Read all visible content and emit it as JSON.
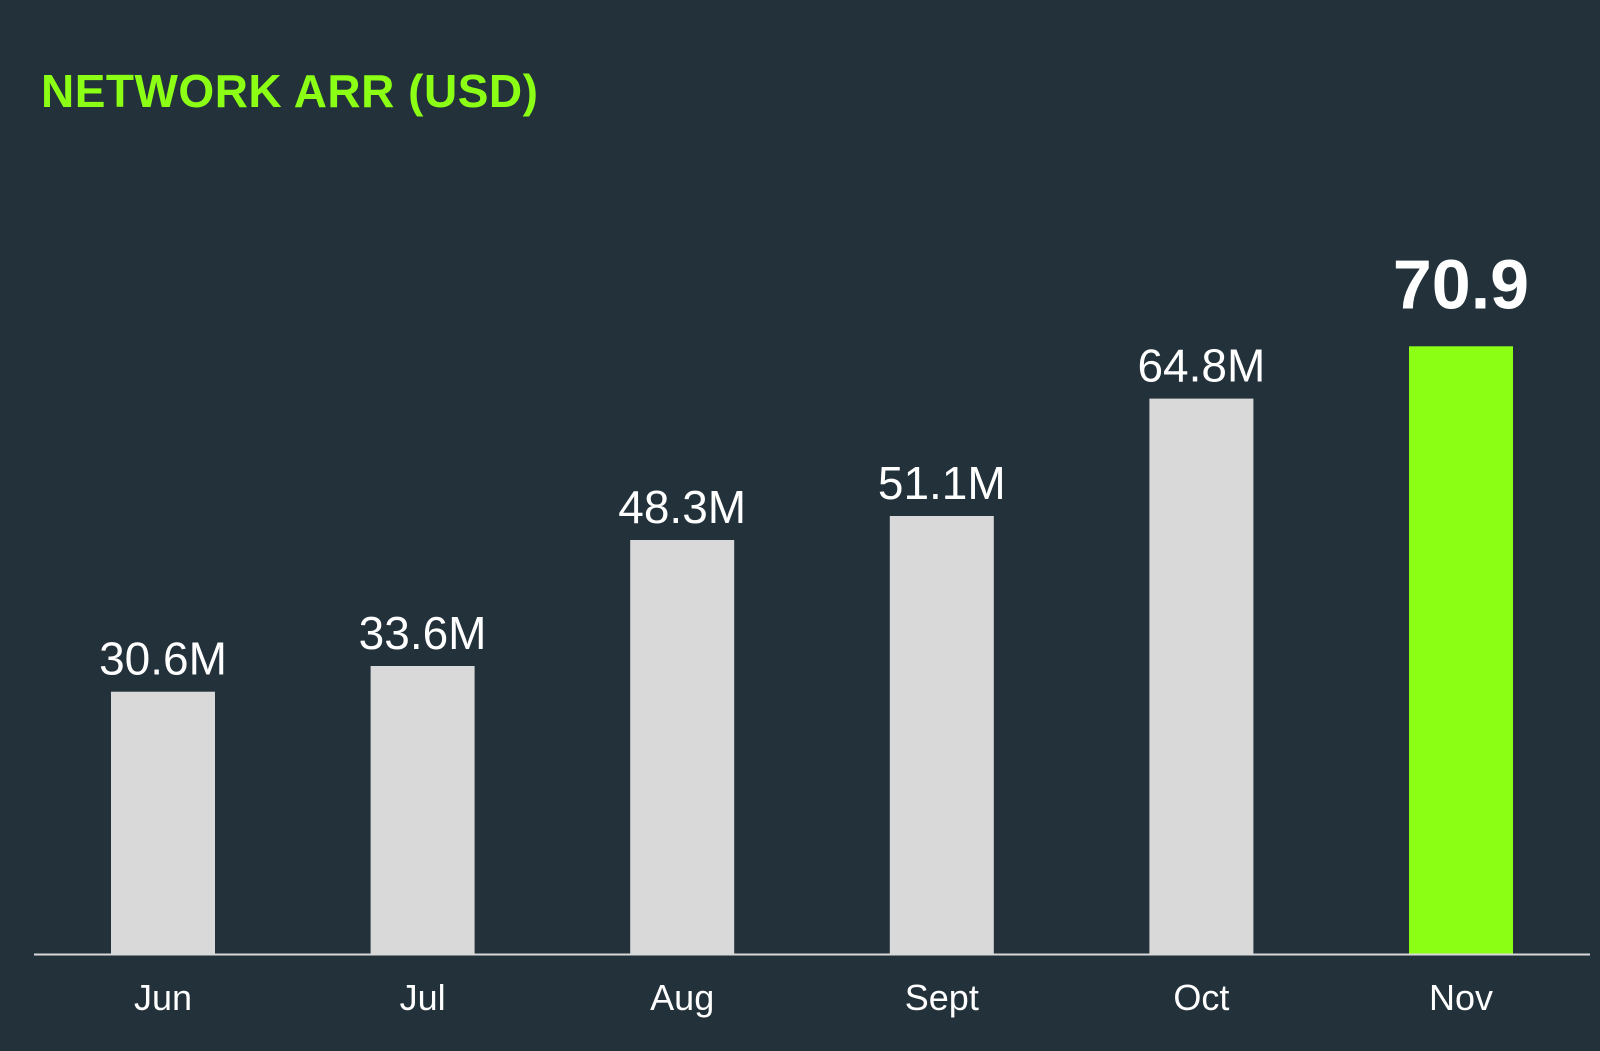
{
  "chart_data": {
    "type": "bar",
    "title": "NETWORK ARR (USD)",
    "categories": [
      "Jun",
      "Jul",
      "Aug",
      "Sept",
      "Oct",
      "Nov"
    ],
    "values": [
      30.6,
      33.6,
      48.3,
      51.1,
      64.8,
      70.9
    ],
    "data_labels": [
      "30.6M",
      "33.6M",
      "48.3M",
      "51.1M",
      "64.8M",
      "70.9"
    ],
    "highlight_index": 5,
    "xlabel": "",
    "ylabel": "",
    "ylim": [
      0,
      77
    ],
    "grid": false,
    "legend": "none",
    "colors": {
      "background": "#22313a",
      "bar": "#d9d9d9",
      "highlight_bar": "#8bff14",
      "title": "#8bff14",
      "text": "#ffffff",
      "axis": "#d9d9d9"
    }
  }
}
